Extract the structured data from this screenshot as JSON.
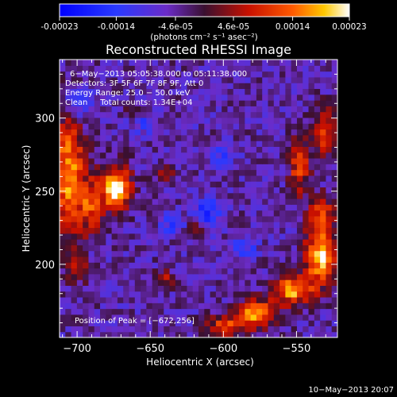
{
  "colorbar": {
    "tick_labels": [
      "-0.00023",
      "-0.00014",
      "-4.6e-05",
      "4.6e-05",
      "0.00014",
      "0.00023"
    ],
    "tick_values": [
      -0.00023,
      -0.00014,
      -4.6e-05,
      4.6e-05,
      0.00014,
      0.00023
    ],
    "range": [
      -0.00023,
      0.00023
    ],
    "unit_label": "(photons cm⁻² s⁻¹ asec⁻²)",
    "gradient_stops": [
      {
        "value": -0.00023,
        "color": "#0000ff"
      },
      {
        "value": -0.00014,
        "color": "#2a3aff"
      },
      {
        "value": -6e-05,
        "color": "#6b2cc8"
      },
      {
        "value": 0.0,
        "color": "#3a1030"
      },
      {
        "value": 7e-05,
        "color": "#c81000"
      },
      {
        "value": 0.00014,
        "color": "#ff5a00"
      },
      {
        "value": 0.00019,
        "color": "#ffc800"
      },
      {
        "value": 0.00023,
        "color": "#ffffff"
      }
    ]
  },
  "chart_data": {
    "type": "heatmap",
    "title": "Reconstructed RHESSI Image",
    "xlabel": "Heliocentric X (arcsec)",
    "ylabel": "Heliocentric Y (arcsec)",
    "xlim": [
      -712,
      -522
    ],
    "ylim": [
      150,
      340
    ],
    "x_ticks": [
      -700,
      -650,
      -600,
      -550
    ],
    "y_ticks": [
      200,
      250,
      300
    ],
    "x_tick_labels": [
      "−700",
      "−650",
      "−600",
      "−550"
    ],
    "y_tick_labels": [
      "200",
      "250",
      "300"
    ],
    "annotations": [
      "6−May−2013 05:05:38.000 to 05:11:38.000",
      "Detectors: 3F 5F 6F 7F 8F 9F, Att 0",
      "Energy Range: 25.0 − 50.0 keV",
      "Clean     Total counts: 1.34E+04"
    ],
    "peak_label": "Position of Peak = [−672,256]",
    "peak_position": [
      -672,
      256
    ],
    "background_level": -5e-05,
    "hotspots": [
      {
        "x": -673,
        "y": 252,
        "sx": 7,
        "sy": 10,
        "level": 0.00023
      },
      {
        "x": -706,
        "y": 262,
        "sx": 8,
        "sy": 30,
        "level": 0.00016
      },
      {
        "x": -690,
        "y": 240,
        "sx": 6,
        "sy": 14,
        "level": 9e-05
      },
      {
        "x": -700,
        "y": 200,
        "sx": 5,
        "sy": 8,
        "level": 7e-05
      },
      {
        "x": -533,
        "y": 205,
        "sx": 8,
        "sy": 12,
        "level": 0.0002
      },
      {
        "x": -552,
        "y": 183,
        "sx": 10,
        "sy": 7,
        "level": 0.00018
      },
      {
        "x": -578,
        "y": 166,
        "sx": 10,
        "sy": 7,
        "level": 0.00016
      },
      {
        "x": -533,
        "y": 232,
        "sx": 6,
        "sy": 10,
        "level": 0.00013
      },
      {
        "x": -548,
        "y": 268,
        "sx": 5,
        "sy": 14,
        "level": 0.00011
      },
      {
        "x": -530,
        "y": 290,
        "sx": 5,
        "sy": 12,
        "level": 0.0001
      },
      {
        "x": -600,
        "y": 158,
        "sx": 8,
        "sy": 5,
        "level": 0.0001
      },
      {
        "x": -640,
        "y": 262,
        "sx": 4,
        "sy": 4,
        "level": 7e-05
      },
      {
        "x": -618,
        "y": 228,
        "sx": 4,
        "sy": 5,
        "level": 6e-05
      },
      {
        "x": -660,
        "y": 305,
        "sx": 4,
        "sy": 4,
        "level": 6e-05
      },
      {
        "x": -640,
        "y": 190,
        "sx": 5,
        "sy": 4,
        "level": 5e-05
      }
    ],
    "coldspots": [
      {
        "x": -612,
        "y": 235,
        "sx": 7,
        "sy": 7,
        "level": -0.00018
      },
      {
        "x": -635,
        "y": 228,
        "sx": 5,
        "sy": 5,
        "level": -0.00014
      },
      {
        "x": -585,
        "y": 212,
        "sx": 6,
        "sy": 5,
        "level": -0.00013
      },
      {
        "x": -700,
        "y": 310,
        "sx": 8,
        "sy": 8,
        "level": -0.00015
      },
      {
        "x": -655,
        "y": 298,
        "sx": 6,
        "sy": 6,
        "level": -0.00012
      },
      {
        "x": -600,
        "y": 275,
        "sx": 6,
        "sy": 6,
        "level": -0.00012
      },
      {
        "x": -620,
        "y": 300,
        "sx": 4,
        "sy": 4,
        "level": -0.0001
      },
      {
        "x": -690,
        "y": 210,
        "sx": 5,
        "sy": 5,
        "level": -0.0001
      },
      {
        "x": -620,
        "y": 190,
        "sx": 5,
        "sy": 4,
        "level": -0.0001
      }
    ]
  },
  "footer": {
    "date": "10−May−2013 20:07"
  }
}
